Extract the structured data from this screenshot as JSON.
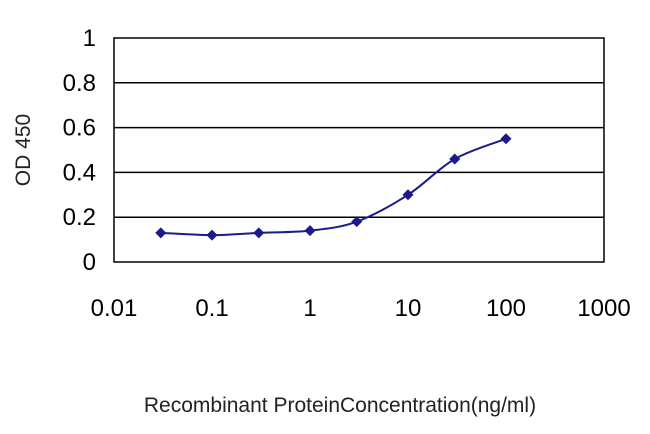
{
  "chart_data": {
    "type": "line",
    "title": "",
    "xlabel": "Recombinant ProteinConcentration(ng/ml)",
    "ylabel": "OD 450",
    "x_scale": "log",
    "xlim": [
      0.01,
      1000
    ],
    "ylim": [
      0,
      1
    ],
    "x_ticks": [
      "0.01",
      "0.1",
      "1",
      "10",
      "100",
      "1000"
    ],
    "y_ticks": [
      "0",
      "0.2",
      "0.4",
      "0.6",
      "0.8",
      "1"
    ],
    "grid": "horizontal",
    "legend": "none",
    "series": [
      {
        "x": [
          0.03,
          0.1,
          0.3,
          1,
          3,
          10,
          30,
          100
        ],
        "y": [
          0.13,
          0.12,
          0.13,
          0.14,
          0.18,
          0.3,
          0.46,
          0.55
        ],
        "color": "#1a1a8c"
      }
    ]
  }
}
